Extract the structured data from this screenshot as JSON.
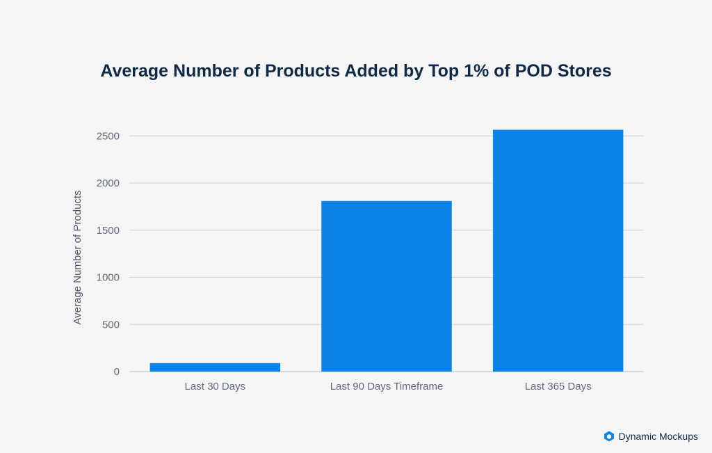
{
  "chart_data": {
    "type": "bar",
    "title": "Average Number of Products Added by Top 1% of POD Stores",
    "xlabel": "",
    "ylabel": "Average Number of Products",
    "categories": [
      "Last 30 Days",
      "Last 90 Days Timeframe",
      "Last 365 Days"
    ],
    "values": [
      90,
      1810,
      2565
    ],
    "ylim": [
      0,
      2650
    ],
    "yticks": [
      0,
      500,
      1000,
      1500,
      2000,
      2500
    ],
    "grid": true,
    "bar_color": "#0a84e8"
  },
  "brand": {
    "name": "Dynamic Mockups",
    "logo_icon": "cube-logo-icon",
    "color": "#0a84e8"
  }
}
